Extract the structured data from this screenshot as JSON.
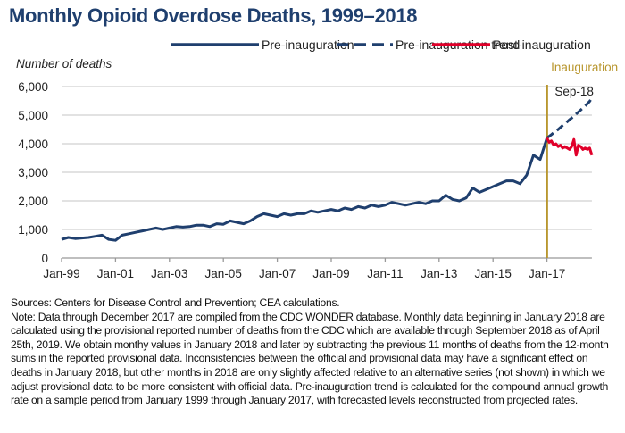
{
  "chart_data": {
    "type": "line",
    "title": "Monthly Opioid Overdose Deaths, 1999–2018",
    "ylabel": "Number of deaths",
    "xlabel": "",
    "ylim": [
      0,
      6000
    ],
    "yticks": [
      0,
      1000,
      2000,
      3000,
      4000,
      5000,
      6000
    ],
    "ytick_labels": [
      "0",
      "1,000",
      "2,000",
      "3,000",
      "4,000",
      "5,000",
      "6,000"
    ],
    "xlim": [
      "1999-01",
      "2018-09"
    ],
    "xticks": [
      "1999-01",
      "2001-01",
      "2003-01",
      "2005-01",
      "2007-01",
      "2009-01",
      "2011-01",
      "2013-01",
      "2015-01",
      "2017-01"
    ],
    "xtick_labels": [
      "Jan-99",
      "Jan-01",
      "Jan-03",
      "Jan-05",
      "Jan-07",
      "Jan-09",
      "Jan-11",
      "Jan-13",
      "Jan-15",
      "Jan-17"
    ],
    "grid": true,
    "legend_placement": "top",
    "colors": {
      "pre": "#1f3f6e",
      "trend": "#1f3f6e",
      "post": "#e0002a",
      "inauguration": "#b8962e"
    },
    "series": [
      {
        "name": "Pre-inauguration",
        "style": "solid",
        "x_start": "1999-01",
        "x_step_months": 3,
        "values": [
          650,
          720,
          680,
          700,
          720,
          760,
          800,
          650,
          620,
          800,
          850,
          900,
          950,
          1000,
          1050,
          1000,
          1050,
          1100,
          1080,
          1100,
          1150,
          1150,
          1100,
          1200,
          1180,
          1300,
          1250,
          1200,
          1300,
          1450,
          1550,
          1500,
          1450,
          1550,
          1500,
          1550,
          1550,
          1650,
          1600,
          1650,
          1700,
          1650,
          1750,
          1700,
          1800,
          1750,
          1850,
          1800,
          1850,
          1950,
          1900,
          1850,
          1900,
          1950,
          1900,
          2000,
          2000,
          2200,
          2050,
          2000,
          2100,
          2450,
          2300,
          2400,
          2500,
          2600,
          2700,
          2700,
          2600,
          2900,
          3600,
          3450,
          4200
        ]
      },
      {
        "name": "Pre-inauguration trend",
        "style": "dashed",
        "x_start": "2017-01",
        "x_step_months": 1,
        "values": [
          4200,
          4260,
          4320,
          4380,
          4440,
          4500,
          4570,
          4640,
          4700,
          4770,
          4840,
          4900,
          4970,
          5040,
          5110,
          5180,
          5250,
          5320,
          5400,
          5480,
          5600
        ]
      },
      {
        "name": "Post-inauguration",
        "style": "solid",
        "x_start": "2017-01",
        "x_step_months": 1,
        "values": [
          4200,
          4050,
          4100,
          3950,
          4000,
          3900,
          3950,
          3850,
          3900,
          3850,
          3800,
          3900,
          4150,
          3600,
          3950,
          3900,
          3800,
          3850,
          3800,
          3850,
          3600
        ]
      }
    ],
    "annotations": [
      {
        "text": "Inauguration",
        "x": "2017-01"
      },
      {
        "text": "Sep-18",
        "x": "2018-09"
      }
    ]
  },
  "notes": {
    "sources": "Sources: Centers for Disease Control and Prevention; CEA calculations.",
    "note": "Note: Data through December 2017 are compiled from the CDC WONDER database. Monthly data beginning in January 2018 are calculated using the provisional reported number of deaths from the CDC which are available through September 2018 as of April 25th, 2019. We obtain monthy values in January 2018 and later by subtracting the previous 11 months of deaths from the 12-month sums in the reported provisional data. Inconsistencies between the official and provisional data may have a significant effect on deaths in January 2018, but other months in 2018 are only slightly affected relative to an alternative series (not shown) in which we adjust provisional data to be more consistent with official data. Pre-inauguration trend is calculated for the compound annual growth rate on a sample period from January 1999 through January 2017, with forecasted levels reconstructed from projected rates."
  }
}
